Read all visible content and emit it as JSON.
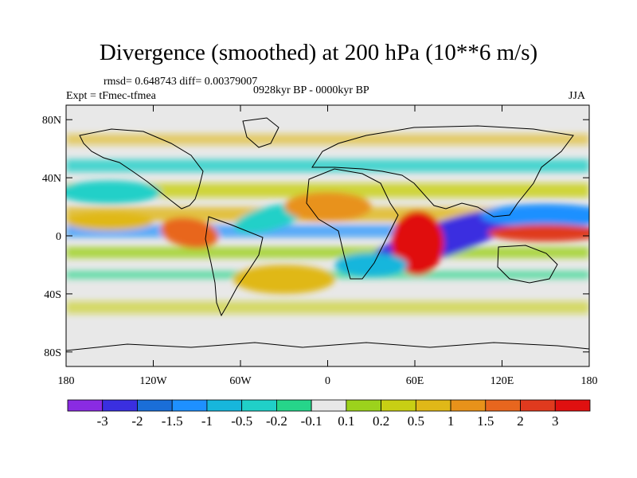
{
  "title": "Divergence (smoothed) at 200 hPa (10**6 m/s)",
  "stats": "rmsd= 0.648743 diff= 0.00379007",
  "period": "0928kyr BP - 0000kyr BP",
  "experiment": "Expt = tFmec-tfmea",
  "season": "JJA",
  "lat_ticks": [
    "80N",
    "40N",
    "0",
    "40S",
    "80S"
  ],
  "lon_ticks": [
    "180",
    "120W",
    "60W",
    "0",
    "60E",
    "120E",
    "180"
  ],
  "colorbar": {
    "labels": [
      "-3",
      "-2",
      "-1.5",
      "-1",
      "-0.5",
      "-0.2",
      "-0.1",
      "0.1",
      "0.2",
      "0.5",
      "1",
      "1.5",
      "2",
      "3"
    ],
    "colors": [
      "#8a2be2",
      "#3a2fe0",
      "#1a6ed8",
      "#1e90ff",
      "#17b6dc",
      "#20d0c8",
      "#26d58a",
      "#e8e8e8",
      "#9cd21c",
      "#c8cf14",
      "#e0b818",
      "#e8921a",
      "#e8661e",
      "#e03a1e",
      "#e01010"
    ]
  },
  "anomalies": [
    {
      "lon": 80,
      "lat": -2,
      "rx": 55,
      "ry": 12,
      "rot": -18,
      "value": -3
    },
    {
      "lon": 62,
      "lat": -5,
      "rx": 18,
      "ry": 22,
      "rot": 0,
      "value": 3
    },
    {
      "lon": 150,
      "lat": 14,
      "rx": 45,
      "ry": 8,
      "rot": 0,
      "value": -1.5
    },
    {
      "lon": 150,
      "lat": 2,
      "rx": 40,
      "ry": 6,
      "rot": 0,
      "value": 2
    },
    {
      "lon": -95,
      "lat": 2,
      "rx": 20,
      "ry": 10,
      "rot": 10,
      "value": 1.5
    },
    {
      "lon": -40,
      "lat": 12,
      "rx": 25,
      "ry": 8,
      "rot": -15,
      "value": -0.5
    },
    {
      "lon": 0,
      "lat": 20,
      "rx": 30,
      "ry": 10,
      "rot": 0,
      "value": 1
    },
    {
      "lon": -150,
      "lat": 30,
      "rx": 35,
      "ry": 8,
      "rot": 0,
      "value": -0.5
    },
    {
      "lon": -150,
      "lat": 10,
      "rx": 30,
      "ry": 6,
      "rot": 0,
      "value": 0.5
    },
    {
      "lon": -30,
      "lat": -30,
      "rx": 35,
      "ry": 10,
      "rot": 0,
      "value": 0.5
    },
    {
      "lon": 30,
      "lat": -20,
      "rx": 25,
      "ry": 8,
      "rot": 0,
      "value": -1
    }
  ]
}
